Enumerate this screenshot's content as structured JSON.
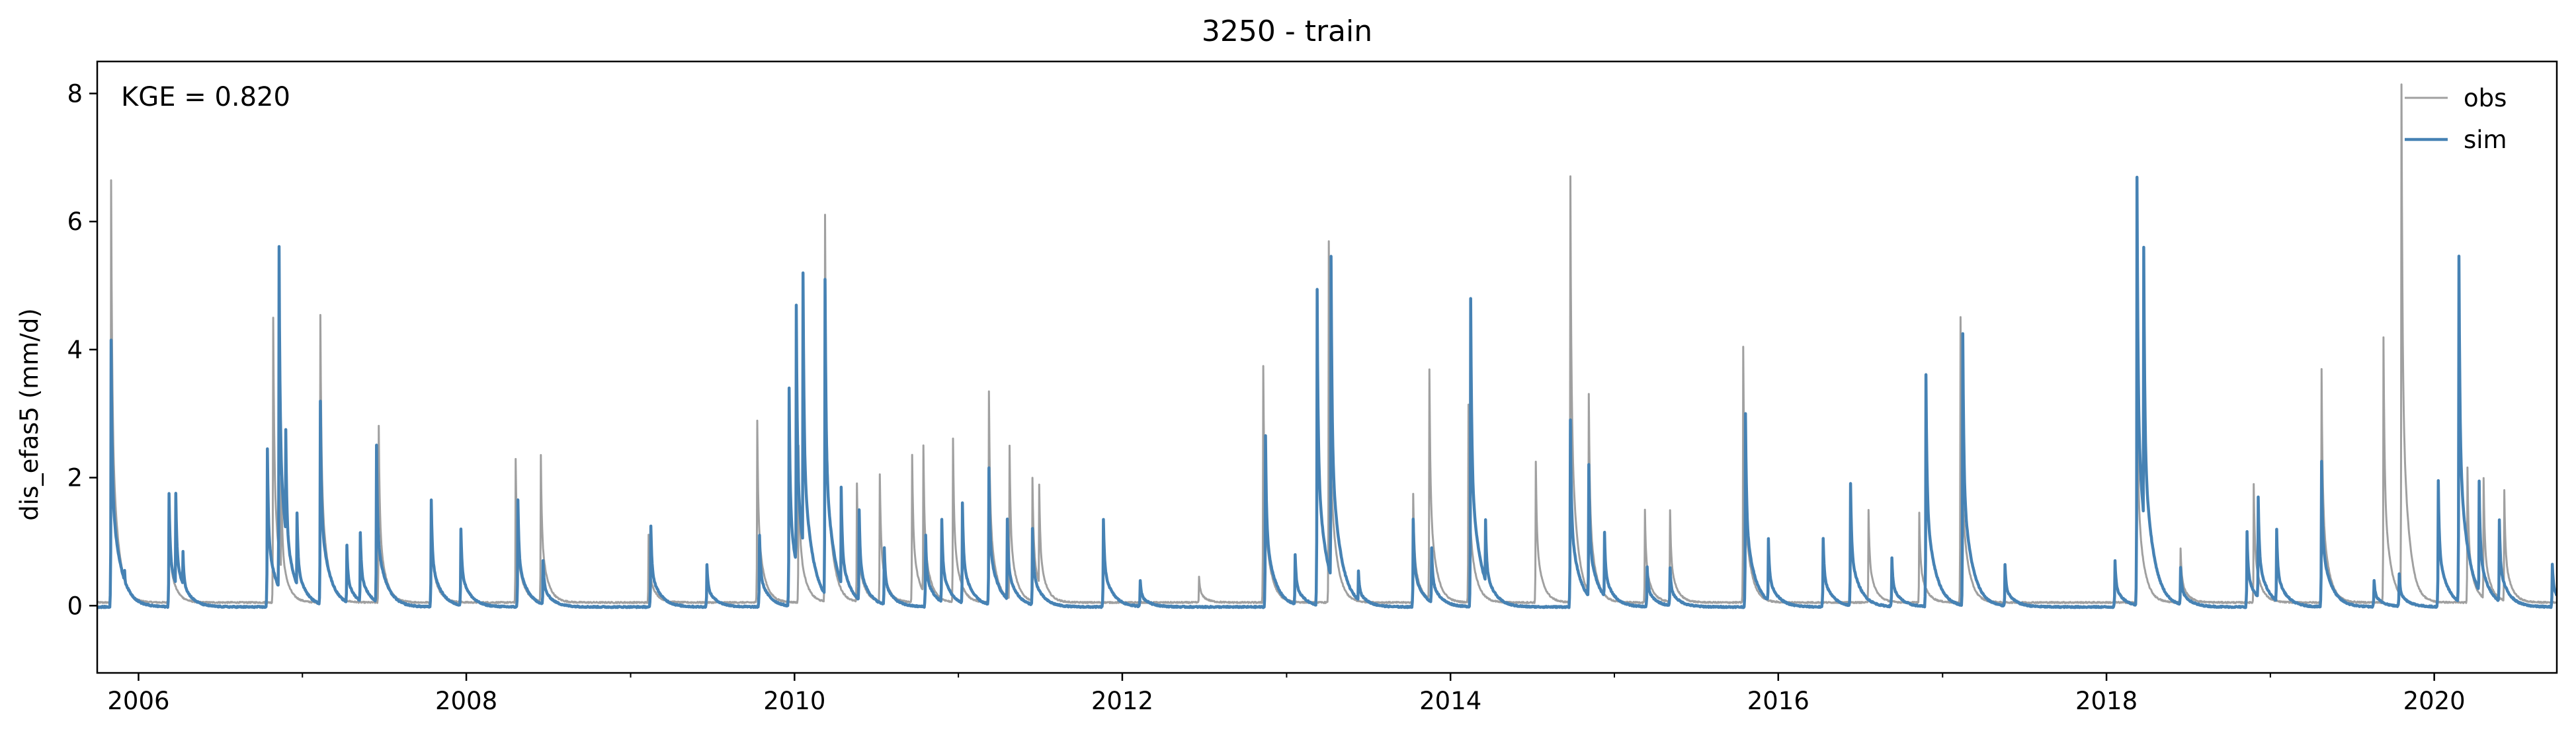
{
  "chart_data": {
    "type": "line",
    "title": "3250 - train",
    "xlabel": "",
    "ylabel": "dis_efas5 (mm/d)",
    "annotation": "KGE = 0.820",
    "xlim": [
      "2005-10-01",
      "2020-09-30"
    ],
    "ylim": [
      -1.05,
      8.5
    ],
    "x_ticks": [
      "2006",
      "2008",
      "2010",
      "2012",
      "2014",
      "2016",
      "2018",
      "2020"
    ],
    "y_ticks": [
      "0",
      "2",
      "4",
      "6",
      "8"
    ],
    "y_tick_values": [
      0,
      2,
      4,
      6,
      8
    ],
    "grid": false,
    "legend_position": "top-right",
    "series": [
      {
        "name": "obs",
        "color": "#a0a0a0",
        "peaks": [
          [
            "2005-11-01",
            6.65
          ],
          [
            "2006-03-10",
            1.6
          ],
          [
            "2006-10-28",
            4.5
          ],
          [
            "2006-11-15",
            2.0
          ],
          [
            "2007-02-10",
            4.55
          ],
          [
            "2007-06-20",
            2.8
          ],
          [
            "2007-10-15",
            1.6
          ],
          [
            "2008-04-20",
            2.3
          ],
          [
            "2008-06-15",
            2.35
          ],
          [
            "2009-02-10",
            1.1
          ],
          [
            "2009-10-10",
            2.9
          ],
          [
            "2010-01-10",
            2.5
          ],
          [
            "2010-03-10",
            6.1
          ],
          [
            "2010-05-20",
            1.9
          ],
          [
            "2010-07-10",
            2.05
          ],
          [
            "2010-09-20",
            2.35
          ],
          [
            "2010-10-15",
            2.5
          ],
          [
            "2010-12-20",
            2.6
          ],
          [
            "2011-03-10",
            3.35
          ],
          [
            "2011-04-25",
            2.5
          ],
          [
            "2011-06-15",
            2.0
          ],
          [
            "2011-06-30",
            1.9
          ],
          [
            "2012-06-20",
            0.45
          ],
          [
            "2012-11-10",
            3.75
          ],
          [
            "2013-04-05",
            5.7
          ],
          [
            "2013-10-10",
            1.75
          ],
          [
            "2013-11-15",
            3.7
          ],
          [
            "2014-02-10",
            3.15
          ],
          [
            "2014-07-10",
            2.25
          ],
          [
            "2014-09-25",
            6.7
          ],
          [
            "2014-11-05",
            3.3
          ],
          [
            "2015-03-10",
            1.5
          ],
          [
            "2015-05-05",
            1.5
          ],
          [
            "2015-10-15",
            4.05
          ],
          [
            "2016-07-20",
            1.5
          ],
          [
            "2016-11-10",
            1.45
          ],
          [
            "2017-02-10",
            4.5
          ],
          [
            "2018-03-10",
            4.0
          ],
          [
            "2018-06-15",
            0.9
          ],
          [
            "2018-11-25",
            1.9
          ],
          [
            "2019-04-25",
            3.7
          ],
          [
            "2019-09-10",
            4.2
          ],
          [
            "2019-10-20",
            8.15
          ],
          [
            "2020-03-15",
            2.15
          ],
          [
            "2020-04-20",
            2.0
          ],
          [
            "2020-06-05",
            1.8
          ]
        ]
      },
      {
        "name": "sim",
        "color": "#4682b4",
        "peaks": [
          [
            "2005-11-01",
            4.15
          ],
          [
            "2005-12-01",
            0.55
          ],
          [
            "2006-03-10",
            1.75
          ],
          [
            "2006-03-25",
            1.75
          ],
          [
            "2006-04-10",
            0.85
          ],
          [
            "2006-10-15",
            2.45
          ],
          [
            "2006-11-10",
            5.6
          ],
          [
            "2006-11-25",
            2.75
          ],
          [
            "2006-12-20",
            1.45
          ],
          [
            "2007-02-10",
            3.2
          ],
          [
            "2007-04-10",
            0.95
          ],
          [
            "2007-05-10",
            1.15
          ],
          [
            "2007-06-15",
            2.5
          ],
          [
            "2007-10-15",
            1.65
          ],
          [
            "2007-12-20",
            1.2
          ],
          [
            "2008-04-25",
            1.65
          ],
          [
            "2008-06-20",
            0.7
          ],
          [
            "2009-02-15",
            1.25
          ],
          [
            "2009-06-20",
            0.65
          ],
          [
            "2009-10-15",
            1.1
          ],
          [
            "2009-12-20",
            3.4
          ],
          [
            "2010-01-05",
            4.7
          ],
          [
            "2010-01-20",
            5.2
          ],
          [
            "2010-03-10",
            5.1
          ],
          [
            "2010-04-15",
            1.85
          ],
          [
            "2010-05-25",
            1.5
          ],
          [
            "2010-07-20",
            0.9
          ],
          [
            "2010-10-20",
            1.1
          ],
          [
            "2010-11-25",
            1.35
          ],
          [
            "2011-01-10",
            1.6
          ],
          [
            "2011-03-10",
            2.15
          ],
          [
            "2011-04-20",
            1.35
          ],
          [
            "2011-06-15",
            1.2
          ],
          [
            "2011-11-20",
            1.35
          ],
          [
            "2012-02-10",
            0.4
          ],
          [
            "2012-11-15",
            2.65
          ],
          [
            "2013-01-20",
            0.8
          ],
          [
            "2013-03-10",
            4.95
          ],
          [
            "2013-04-10",
            5.45
          ],
          [
            "2013-06-10",
            0.55
          ],
          [
            "2013-10-10",
            1.35
          ],
          [
            "2013-11-20",
            0.9
          ],
          [
            "2014-02-15",
            4.8
          ],
          [
            "2014-03-20",
            1.35
          ],
          [
            "2014-09-25",
            2.9
          ],
          [
            "2014-11-05",
            2.2
          ],
          [
            "2014-12-10",
            1.15
          ],
          [
            "2015-03-15",
            0.6
          ],
          [
            "2015-05-05",
            0.6
          ],
          [
            "2015-10-20",
            3.0
          ],
          [
            "2015-12-10",
            1.05
          ],
          [
            "2016-04-10",
            1.05
          ],
          [
            "2016-06-10",
            1.9
          ],
          [
            "2016-09-10",
            0.75
          ],
          [
            "2016-11-25",
            3.6
          ],
          [
            "2017-02-15",
            4.25
          ],
          [
            "2017-05-20",
            0.65
          ],
          [
            "2018-01-20",
            0.7
          ],
          [
            "2018-03-10",
            6.7
          ],
          [
            "2018-03-25",
            5.6
          ],
          [
            "2018-06-15",
            0.6
          ],
          [
            "2018-11-10",
            1.15
          ],
          [
            "2018-12-05",
            1.7
          ],
          [
            "2019-01-15",
            1.2
          ],
          [
            "2019-04-25",
            2.25
          ],
          [
            "2019-08-20",
            0.4
          ],
          [
            "2019-10-15",
            0.5
          ],
          [
            "2020-01-10",
            1.95
          ],
          [
            "2020-02-25",
            5.45
          ],
          [
            "2020-04-10",
            1.95
          ],
          [
            "2020-05-25",
            1.35
          ],
          [
            "2020-09-20",
            0.65
          ]
        ]
      }
    ]
  }
}
